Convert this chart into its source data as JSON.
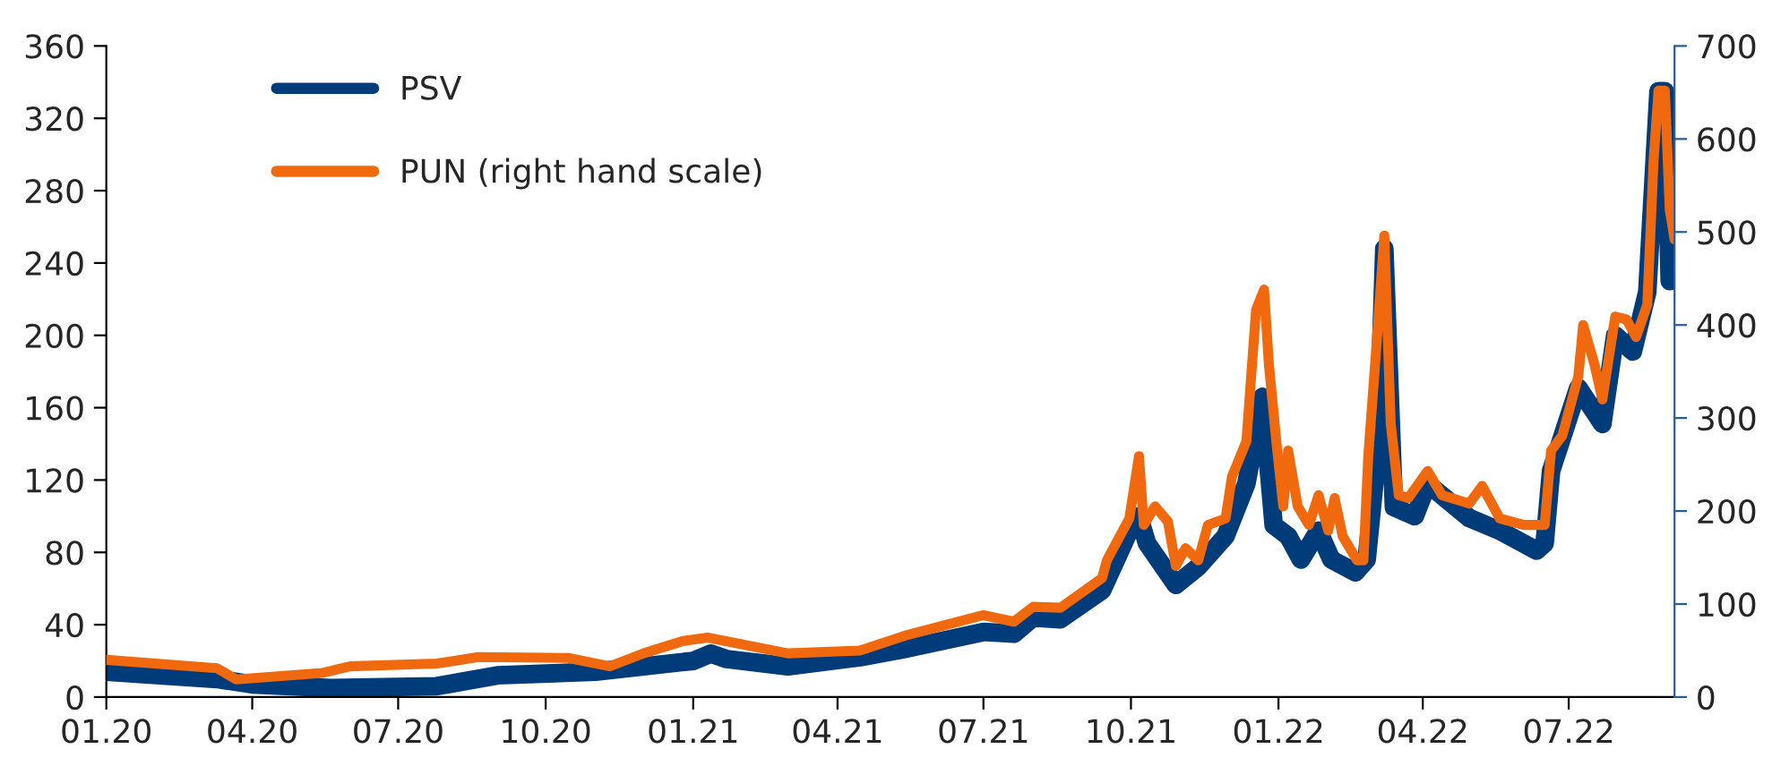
{
  "chart_data": {
    "type": "line",
    "series": [
      {
        "name": "PSV",
        "color": "#003b7a",
        "x": [
          "2020-01-01",
          "2020-03-10",
          "2020-04-01",
          "2020-05-20",
          "2020-07-25",
          "2020-09-01",
          "2020-11-01",
          "2021-01-01",
          "2021-01-12",
          "2021-01-22",
          "2021-03-01",
          "2021-04-15",
          "2021-05-15",
          "2021-07-01",
          "2021-07-20",
          "2021-08-01",
          "2021-08-18",
          "2021-09-13",
          "2021-09-30",
          "2021-10-06",
          "2021-10-11",
          "2021-10-29",
          "2021-11-12",
          "2021-11-29",
          "2021-12-12",
          "2021-12-22",
          "2021-12-29",
          "2022-01-07",
          "2022-01-15",
          "2022-01-26",
          "2022-02-03",
          "2022-02-18",
          "2022-02-25",
          "2022-03-04",
          "2022-03-08",
          "2022-03-14",
          "2022-03-27",
          "2022-04-04",
          "2022-04-30",
          "2022-05-19",
          "2022-06-11",
          "2022-06-16",
          "2022-06-20",
          "2022-07-07",
          "2022-07-22",
          "2022-07-30",
          "2022-08-10",
          "2022-08-19",
          "2022-08-26",
          "2022-08-30",
          "2022-09-02",
          "2022-09-05"
        ],
        "values": [
          14,
          10,
          7,
          5,
          6,
          12,
          14,
          20,
          24,
          21,
          17,
          22,
          27,
          36,
          35,
          44,
          43,
          59,
          92,
          100,
          85,
          62,
          72,
          89,
          118,
          166,
          95,
          89,
          76,
          92,
          76,
          69,
          76,
          138,
          248,
          105,
          100,
          118,
          99,
          92,
          81,
          85,
          125,
          171,
          151,
          200,
          191,
          224,
          335,
          335,
          230,
          243
        ]
      },
      {
        "name": "PUN (right hand scale)",
        "color": "#f0690f",
        "axis": "y2",
        "x": [
          "2020-01-01",
          "2020-03-10",
          "2020-03-22",
          "2020-05-15",
          "2020-06-01",
          "2020-07-25",
          "2020-08-20",
          "2020-10-15",
          "2020-11-10",
          "2020-12-01",
          "2020-12-25",
          "2021-01-10",
          "2021-03-01",
          "2021-04-15",
          "2021-05-15",
          "2021-07-01",
          "2021-07-20",
          "2021-08-01",
          "2021-08-18",
          "2021-09-13",
          "2021-09-16",
          "2021-09-30",
          "2021-10-06",
          "2021-10-09",
          "2021-10-16",
          "2021-10-24",
          "2021-10-29",
          "2021-11-04",
          "2021-11-12",
          "2021-11-18",
          "2021-11-29",
          "2021-12-03",
          "2021-12-12",
          "2021-12-18",
          "2021-12-23",
          "2021-12-26",
          "2021-12-31",
          "2022-01-04",
          "2022-01-07",
          "2022-01-13",
          "2022-01-20",
          "2022-01-26",
          "2022-02-01",
          "2022-02-05",
          "2022-02-10",
          "2022-02-19",
          "2022-02-23",
          "2022-02-26",
          "2022-03-02",
          "2022-03-08",
          "2022-03-12",
          "2022-03-17",
          "2022-03-23",
          "2022-04-04",
          "2022-04-13",
          "2022-04-30",
          "2022-05-08",
          "2022-05-19",
          "2022-06-03",
          "2022-06-11",
          "2022-06-16",
          "2022-06-20",
          "2022-06-27",
          "2022-07-07",
          "2022-07-10",
          "2022-07-17",
          "2022-07-22",
          "2022-07-30",
          "2022-08-06",
          "2022-08-12",
          "2022-08-19",
          "2022-08-23",
          "2022-08-26",
          "2022-08-30",
          "2022-09-02",
          "2022-09-05"
        ],
        "values": [
          40,
          31,
          19,
          26,
          33,
          36,
          43,
          42,
          33,
          47,
          60,
          64,
          47,
          50,
          67,
          88,
          81,
          97,
          96,
          128,
          147,
          192,
          259,
          185,
          205,
          189,
          141,
          160,
          147,
          185,
          192,
          237,
          275,
          416,
          438,
          358,
          269,
          205,
          265,
          205,
          185,
          217,
          179,
          214,
          173,
          147,
          147,
          259,
          352,
          496,
          294,
          217,
          214,
          243,
          217,
          208,
          227,
          192,
          185,
          185,
          185,
          265,
          281,
          345,
          400,
          358,
          320,
          409,
          406,
          387,
          422,
          579,
          652,
          652,
          524,
          492
        ]
      }
    ],
    "xlim": [
      "2020-01-01",
      "2022-09-05"
    ],
    "xticks": [
      {
        "value": "2020-01-01",
        "label": "01.20"
      },
      {
        "value": "2020-04-01",
        "label": "04.20"
      },
      {
        "value": "2020-07-01",
        "label": "07.20"
      },
      {
        "value": "2020-10-01",
        "label": "10.20"
      },
      {
        "value": "2021-01-01",
        "label": "01.21"
      },
      {
        "value": "2021-04-01",
        "label": "04.21"
      },
      {
        "value": "2021-07-01",
        "label": "07.21"
      },
      {
        "value": "2021-10-01",
        "label": "10.21"
      },
      {
        "value": "2022-01-01",
        "label": "01.22"
      },
      {
        "value": "2022-04-01",
        "label": "04.22"
      },
      {
        "value": "2022-07-01",
        "label": "07.22"
      }
    ],
    "ylim": [
      0,
      360
    ],
    "yticks": [
      0,
      40,
      80,
      120,
      160,
      200,
      240,
      280,
      320,
      360
    ],
    "y2lim": [
      0,
      700
    ],
    "y2ticks": [
      0,
      100,
      200,
      300,
      400,
      500,
      600,
      700
    ],
    "legend": "top left",
    "grid": false,
    "marker": "none",
    "line_style": "solid"
  }
}
